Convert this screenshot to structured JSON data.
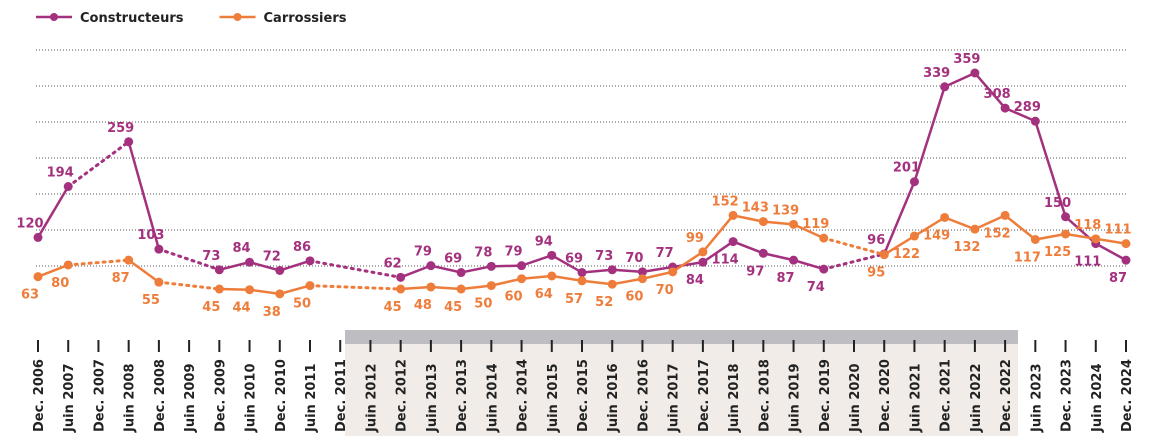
{
  "chart_data": {
    "type": "line",
    "categories": [
      "Dec. 2006",
      "Juin 2007",
      "Dec. 2007",
      "Juin 2008",
      "Dec. 2008",
      "Juin 2009",
      "Dec. 2009",
      "Juin 2010",
      "Dec. 2010",
      "Juin 2011",
      "Dec. 2011",
      "Juin 2012",
      "Dec. 2012",
      "Juin 2013",
      "Dec. 2013",
      "Juin 2014",
      "Dec. 2014",
      "Juin 2015",
      "Dec. 2015",
      "Juin 2016",
      "Dec. 2016",
      "Juin 2017",
      "Dec. 2017",
      "Juin 2018",
      "Dec. 2018",
      "Juin 2019",
      "Dec. 2019",
      "Juin 2020",
      "Dec. 2020",
      "Juin 2021",
      "Dec. 2021",
      "Juin 2022",
      "Dec. 2022",
      "Juin 2023",
      "Dec. 2023",
      "Juin 2024",
      "Dec. 2024"
    ],
    "series": [
      {
        "name": "Constructeurs",
        "color": "#a3317e",
        "values": [
          120,
          194,
          null,
          259,
          103,
          null,
          73,
          84,
          72,
          86,
          null,
          null,
          62,
          79,
          69,
          78,
          79,
          94,
          69,
          73,
          70,
          77,
          84,
          114,
          97,
          87,
          74,
          null,
          96,
          201,
          339,
          359,
          308,
          289,
          150,
          111,
          87
        ]
      },
      {
        "name": "Carrossiers",
        "color": "#ee7d3b",
        "values": [
          63,
          80,
          null,
          87,
          55,
          null,
          45,
          44,
          38,
          50,
          null,
          null,
          45,
          48,
          45,
          50,
          60,
          64,
          57,
          52,
          60,
          70,
          99,
          152,
          143,
          139,
          119,
          null,
          95,
          122,
          149,
          132,
          152,
          117,
          125,
          118,
          111
        ]
      }
    ]
  }
}
